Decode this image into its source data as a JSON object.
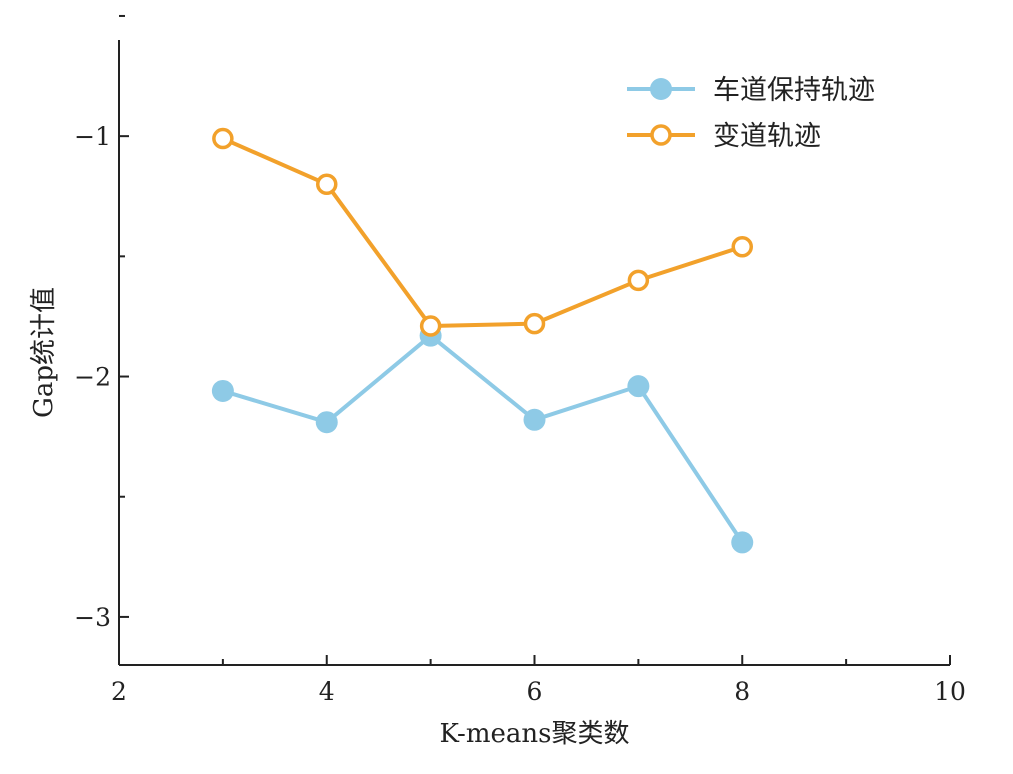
{
  "chart_data": {
    "type": "line",
    "xlabel": "K-means聚类数",
    "ylabel": "Gap统计值",
    "xlim": [
      2,
      10
    ],
    "ylim": [
      -3.2,
      -0.6
    ],
    "x_ticks": [
      2,
      4,
      6,
      8,
      10
    ],
    "x_tick_labels": [
      "2",
      "4",
      "6",
      "8",
      "10"
    ],
    "y_ticks": [
      -3,
      -2,
      -1
    ],
    "y_tick_labels": [
      "−3",
      "−2",
      "−1"
    ],
    "grid": false,
    "legend_position": "top-right",
    "series": [
      {
        "name": "车道保持轨迹",
        "color": "#8ecae6",
        "marker": "filled-circle",
        "x": [
          3,
          4,
          5,
          6,
          7,
          8
        ],
        "y": [
          -2.06,
          -2.19,
          -1.83,
          -2.18,
          -2.04,
          -2.69
        ]
      },
      {
        "name": "变道轨迹",
        "color": "#f2a12b",
        "marker": "open-circle",
        "x": [
          3,
          4,
          5,
          6,
          7,
          8
        ],
        "y": [
          -1.01,
          -1.2,
          -1.79,
          -1.78,
          -1.6,
          -1.46
        ]
      }
    ]
  }
}
